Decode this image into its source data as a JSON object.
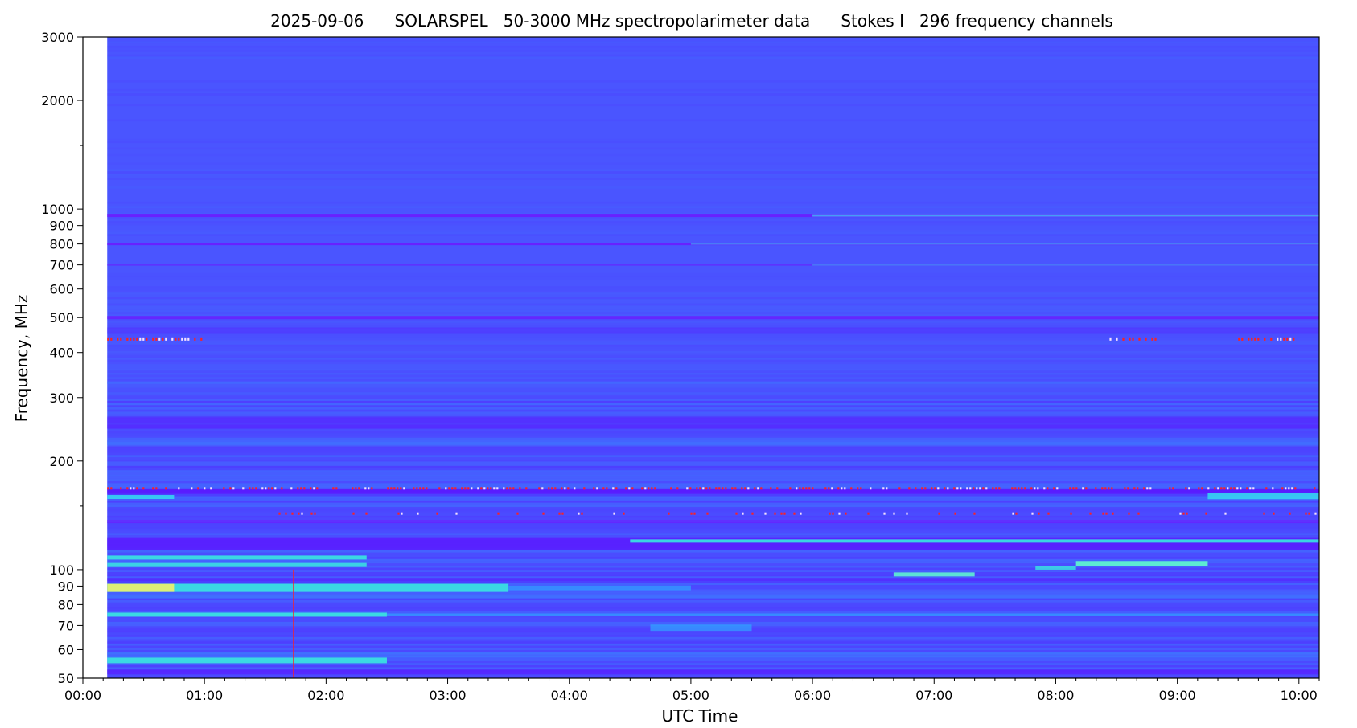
{
  "chart_data": {
    "type": "heatmap",
    "title": {
      "date": "2025-09-06",
      "instrument": "SOLARSPEL",
      "description": "50-3000 MHz spectropolarimeter data",
      "stokes": "Stokes I",
      "channels": "296 frequency channels"
    },
    "xlabel": "UTC Time",
    "ylabel": "Frequency, MHz",
    "y_scale": "log",
    "ylim": [
      50,
      3000
    ],
    "xlim": [
      "00:00",
      "10:10"
    ],
    "data_start": "00:12",
    "x_ticks": [
      "00:00",
      "01:00",
      "02:00",
      "03:00",
      "04:00",
      "05:00",
      "06:00",
      "07:00",
      "08:00",
      "09:00",
      "10:00"
    ],
    "y_major_ticks": [
      50,
      60,
      70,
      80,
      90,
      100,
      200,
      300,
      400,
      500,
      600,
      700,
      800,
      900,
      1000,
      2000,
      3000
    ],
    "y_minor_ticks": [
      1500,
      150
    ],
    "background_color": "#4a55ff",
    "colormap": [
      "#5b18ff",
      "#4a55ff",
      "#2fa6ff",
      "#38e8e0",
      "#e6f070",
      "#ff2020"
    ],
    "bands": [
      {
        "freq": 960,
        "from": "00:12",
        "to": "10:10",
        "color": "#6b1cff",
        "width": 4,
        "opacity": 0.9
      },
      {
        "freq": 960,
        "from": "06:00",
        "to": "10:10",
        "color": "#35d4f2",
        "width": 3,
        "opacity": 0.7
      },
      {
        "freq": 800,
        "from": "00:12",
        "to": "10:10",
        "color": "#6b1cff",
        "width": 3,
        "opacity": 0.9
      },
      {
        "freq": 800,
        "from": "05:00",
        "to": "10:10",
        "color": "#35b8f2",
        "width": 2,
        "opacity": 0.6
      },
      {
        "freq": 700,
        "from": "00:12",
        "to": "10:10",
        "color": "#6b1cff",
        "width": 2,
        "opacity": 0.6
      },
      {
        "freq": 700,
        "from": "06:00",
        "to": "10:10",
        "color": "#35b8f2",
        "width": 2,
        "opacity": 0.5
      },
      {
        "freq": 500,
        "from": "00:12",
        "to": "10:10",
        "color": "#6b1cff",
        "width": 4,
        "opacity": 0.8
      },
      {
        "freq": 460,
        "from": "00:12",
        "to": "10:10",
        "color": "#5326ff",
        "width": 8,
        "opacity": 0.5
      },
      {
        "freq": 330,
        "from": "00:12",
        "to": "10:10",
        "color": "#3d78ff",
        "width": 3,
        "opacity": 0.6
      },
      {
        "freq": 255,
        "from": "00:12",
        "to": "10:10",
        "color": "#5b18ff",
        "width": 14,
        "opacity": 0.5
      },
      {
        "freq": 225,
        "from": "00:12",
        "to": "10:10",
        "color": "#3d78ff",
        "width": 6,
        "opacity": 0.6
      },
      {
        "freq": 165,
        "from": "00:12",
        "to": "10:10",
        "color": "#5b18ff",
        "width": 7,
        "opacity": 0.9
      },
      {
        "freq": 159,
        "from": "00:12",
        "to": "00:45",
        "color": "#35d4f2",
        "width": 5,
        "opacity": 0.9
      },
      {
        "freq": 160,
        "from": "09:15",
        "to": "10:10",
        "color": "#35d4f2",
        "width": 8,
        "opacity": 0.9
      },
      {
        "freq": 136,
        "from": "00:12",
        "to": "10:10",
        "color": "#6b1cff",
        "width": 4,
        "opacity": 0.7
      },
      {
        "freq": 118,
        "from": "00:12",
        "to": "10:10",
        "color": "#5b18ff",
        "width": 16,
        "opacity": 0.8
      },
      {
        "freq": 120,
        "from": "04:30",
        "to": "10:10",
        "color": "#38e8e0",
        "width": 4,
        "opacity": 0.9
      },
      {
        "freq": 108,
        "from": "00:12",
        "to": "02:20",
        "color": "#38e8e0",
        "width": 5,
        "opacity": 0.9
      },
      {
        "freq": 103,
        "from": "00:12",
        "to": "02:20",
        "color": "#38e8e0",
        "width": 5,
        "opacity": 0.85
      },
      {
        "freq": 104,
        "from": "08:10",
        "to": "09:15",
        "color": "#5ef3d0",
        "width": 6,
        "opacity": 0.95
      },
      {
        "freq": 101,
        "from": "07:50",
        "to": "08:10",
        "color": "#38e8e0",
        "width": 4,
        "opacity": 0.8
      },
      {
        "freq": 97,
        "from": "06:40",
        "to": "07:20",
        "color": "#5ef3d0",
        "width": 5,
        "opacity": 0.9
      },
      {
        "freq": 94,
        "from": "00:12",
        "to": "10:10",
        "color": "#5b18ff",
        "width": 4,
        "opacity": 0.5
      },
      {
        "freq": 89,
        "from": "00:12",
        "to": "03:30",
        "color": "#38e8e0",
        "width": 10,
        "opacity": 0.9
      },
      {
        "freq": 89,
        "from": "00:12",
        "to": "00:45",
        "color": "#e6f070",
        "width": 10,
        "opacity": 0.95
      },
      {
        "freq": 89,
        "from": "03:30",
        "to": "05:00",
        "color": "#2fa6ff",
        "width": 6,
        "opacity": 0.7
      },
      {
        "freq": 84,
        "from": "00:12",
        "to": "10:10",
        "color": "#3d78ff",
        "width": 4,
        "opacity": 0.5
      },
      {
        "freq": 75,
        "from": "00:12",
        "to": "02:30",
        "color": "#38e8e0",
        "width": 5,
        "opacity": 0.9
      },
      {
        "freq": 75,
        "from": "02:30",
        "to": "10:10",
        "color": "#2fa6ff",
        "width": 3,
        "opacity": 0.6
      },
      {
        "freq": 69,
        "from": "04:40",
        "to": "05:30",
        "color": "#2fa6ff",
        "width": 8,
        "opacity": 0.7
      },
      {
        "freq": 58,
        "from": "00:12",
        "to": "10:10",
        "color": "#3d78ff",
        "width": 6,
        "opacity": 0.6
      },
      {
        "freq": 56,
        "from": "00:12",
        "to": "02:30",
        "color": "#38e8e0",
        "width": 7,
        "opacity": 0.9
      },
      {
        "freq": 52,
        "from": "00:12",
        "to": "10:10",
        "color": "#5b18ff",
        "width": 6,
        "opacity": 0.6
      }
    ],
    "red_rows": [
      {
        "freq": 168,
        "from": "00:12",
        "to": "10:10",
        "density": 0.6
      },
      {
        "freq": 143,
        "from": "01:35",
        "to": "10:10",
        "density": 0.18
      },
      {
        "freq": 435,
        "from": "00:12",
        "to": "01:00",
        "density": 0.7
      },
      {
        "freq": 435,
        "from": "09:30",
        "to": "10:00",
        "density": 0.7
      },
      {
        "freq": 435,
        "from": "08:25",
        "to": "08:50",
        "density": 0.5
      }
    ],
    "spike": {
      "time": "01:44",
      "from_freq": 50,
      "to_freq": 100,
      "color": "#ff2020"
    }
  }
}
